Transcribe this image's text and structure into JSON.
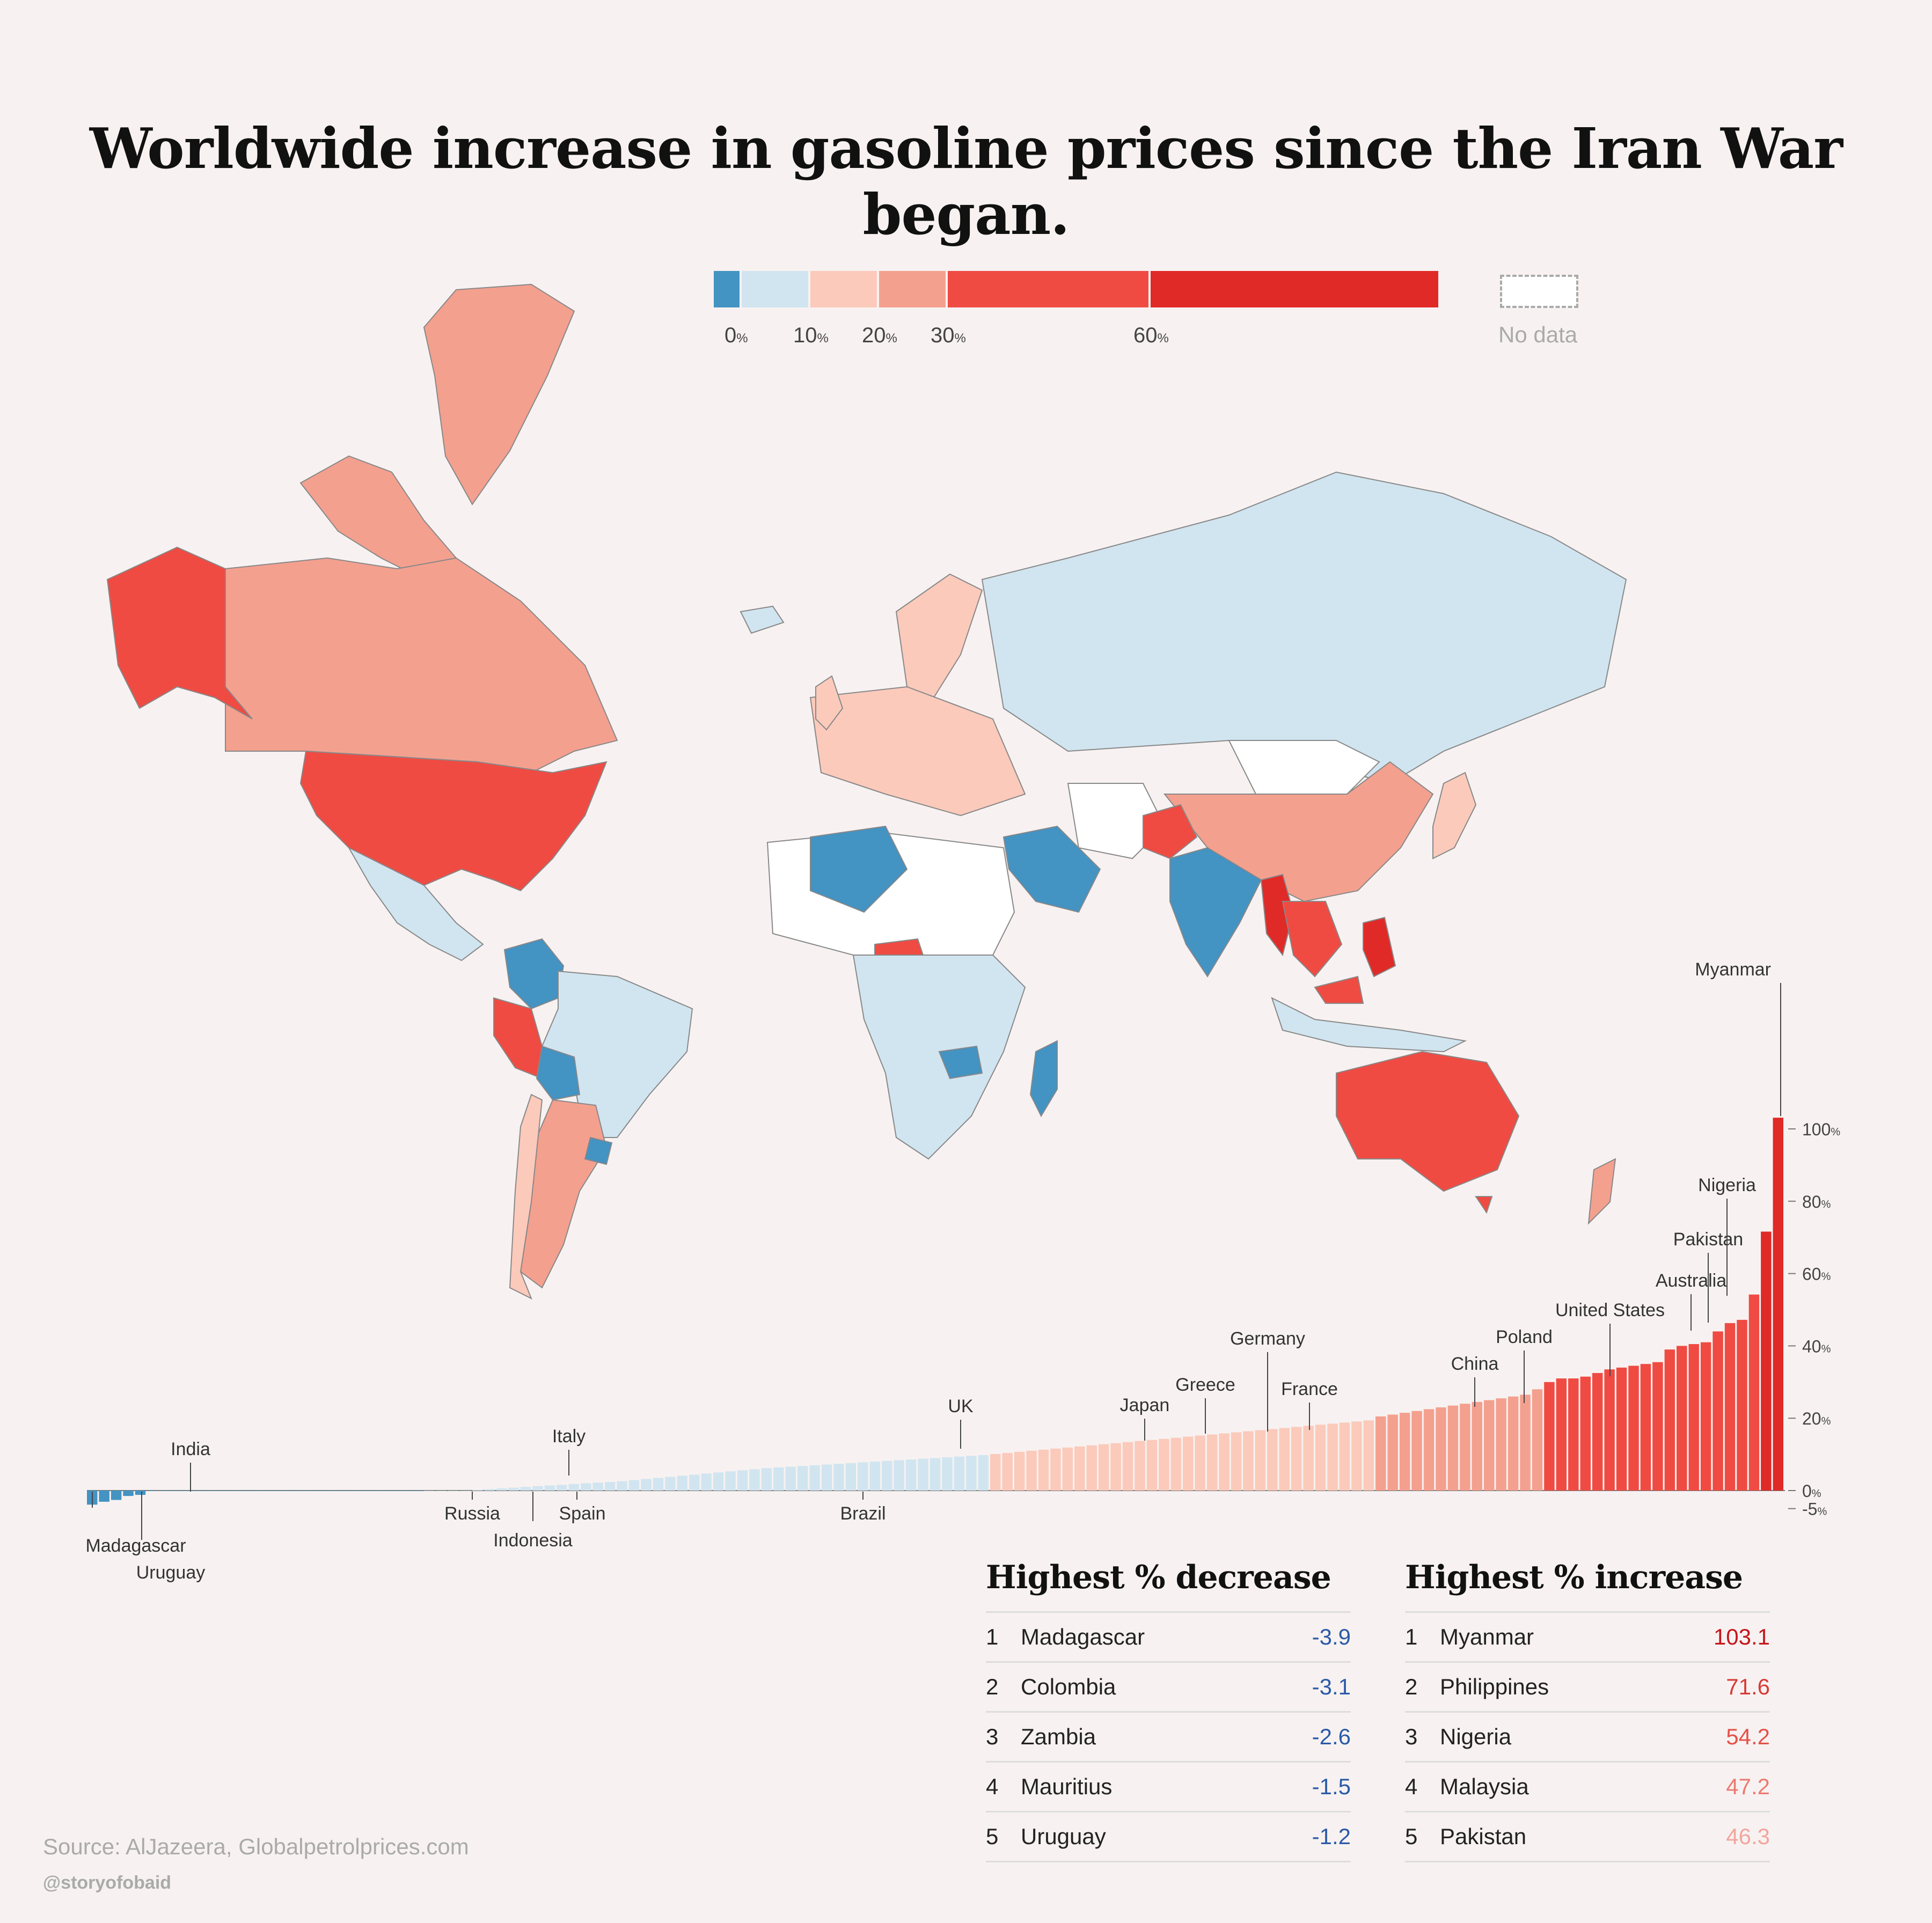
{
  "title": "Worldwide increase in gasoline prices since the Iran War began.",
  "legend": {
    "bins": [
      {
        "from": -5,
        "to": 0,
        "color": "#4393c3"
      },
      {
        "from": 0,
        "to": 10,
        "color": "#d1e5f0"
      },
      {
        "from": 10,
        "to": 20,
        "color": "#fbcabb"
      },
      {
        "from": 20,
        "to": 30,
        "color": "#f4a08f"
      },
      {
        "from": 30,
        "to": 60,
        "color": "#ef4b43"
      },
      {
        "from": 60,
        "to": 100,
        "color": "#e02a27"
      }
    ],
    "ticks": [
      "0",
      "10",
      "20",
      "30",
      "60"
    ],
    "unit": "%",
    "nodata_label": "No data"
  },
  "map": {
    "regions": [
      {
        "name": "Canada",
        "value": 25
      },
      {
        "name": "Greenland",
        "value": 25
      },
      {
        "name": "Alaska",
        "value": 31
      },
      {
        "name": "United States",
        "value": 31
      },
      {
        "name": "Mexico",
        "value": 5
      },
      {
        "name": "Colombia",
        "value": -3.1
      },
      {
        "name": "Peru",
        "value": 35
      },
      {
        "name": "Bolivia",
        "value": -1
      },
      {
        "name": "Brazil",
        "value": 9
      },
      {
        "name": "Argentina",
        "value": 22
      },
      {
        "name": "Chile",
        "value": 15
      },
      {
        "name": "Uruguay",
        "value": -1.2
      },
      {
        "name": "Russia",
        "value": 2
      },
      {
        "name": "Mongolia",
        "value": null
      },
      {
        "name": "China",
        "value": 23
      },
      {
        "name": "India",
        "value": -0.1
      },
      {
        "name": "Pakistan",
        "value": 46.3
      },
      {
        "name": "Myanmar",
        "value": 103.1
      },
      {
        "name": "Saudi Arabia",
        "value": -1
      },
      {
        "name": "Algeria",
        "value": -1
      },
      {
        "name": "Nigeria",
        "value": 54.2
      },
      {
        "name": "Madagascar",
        "value": -3.9
      },
      {
        "name": "Zambia",
        "value": -2.6
      },
      {
        "name": "Australia",
        "value": 44
      },
      {
        "name": "Philippines",
        "value": 71.6
      },
      {
        "name": "Japan",
        "value": 14
      },
      {
        "name": "Malaysia",
        "value": 47.2
      }
    ]
  },
  "chart_data": {
    "type": "bar",
    "ylabel": "",
    "ylim": [
      -5,
      105
    ],
    "yticks": [
      "100",
      "80",
      "60",
      "40",
      "20",
      "0",
      "-5"
    ],
    "unit": "%",
    "values": [
      -3.9,
      -3.1,
      -2.6,
      -1.5,
      -1.2,
      -0.1,
      -0.1,
      -0.1,
      -0.1,
      -0.1,
      -0.1,
      -0.1,
      -0.1,
      -0.1,
      -0.1,
      -0.1,
      -0.1,
      -0.1,
      -0.1,
      -0.1,
      -0.1,
      -0.1,
      -0.1,
      -0.1,
      -0.1,
      -0.1,
      -0.1,
      -0.1,
      0,
      0,
      0,
      0,
      0.2,
      0.4,
      0.6,
      0.8,
      1,
      1.2,
      1.4,
      1.6,
      1.8,
      2,
      2.2,
      2.4,
      2.6,
      2.9,
      3.2,
      3.5,
      3.8,
      4.1,
      4.4,
      4.7,
      5,
      5.3,
      5.6,
      5.9,
      6.2,
      6.4,
      6.6,
      6.8,
      7,
      7.2,
      7.4,
      7.6,
      7.8,
      8,
      8.2,
      8.4,
      8.6,
      8.8,
      9,
      9.2,
      9.4,
      9.6,
      9.8,
      10.1,
      10.4,
      10.7,
      11,
      11.3,
      11.6,
      11.9,
      12.2,
      12.5,
      12.8,
      13.1,
      13.4,
      13.7,
      14,
      14.3,
      14.6,
      14.9,
      15.2,
      15.5,
      15.8,
      16.1,
      16.4,
      16.7,
      17,
      17.3,
      17.6,
      17.9,
      18.2,
      18.5,
      18.8,
      19.1,
      19.4,
      20.5,
      21,
      21.5,
      22,
      22.5,
      23,
      23.5,
      24,
      24.5,
      25,
      25.5,
      26,
      26.5,
      28,
      30,
      31,
      31,
      31.5,
      32.5,
      33.5,
      34,
      34.5,
      35,
      35.5,
      39,
      40,
      40.5,
      41,
      44,
      46.3,
      47.2,
      54.2,
      71.6,
      103.1
    ],
    "labels_above": [
      {
        "name": "India",
        "index": 20
      },
      {
        "name": "Italy",
        "index": 9999
      },
      {
        "name": "UK",
        "index": 9999
      },
      {
        "name": "Japan",
        "index": 9999
      },
      {
        "name": "Greece",
        "index": 9999
      },
      {
        "name": "Germany",
        "index": 9999
      },
      {
        "name": "France",
        "index": 9999
      },
      {
        "name": "China",
        "index": 9999
      },
      {
        "name": "Poland",
        "index": 9999
      },
      {
        "name": "United States",
        "index": 9999
      },
      {
        "name": "Australia",
        "index": 9999
      },
      {
        "name": "Pakistan",
        "index": 9999
      },
      {
        "name": "Nigeria",
        "index": 9999
      },
      {
        "name": "Myanmar",
        "index": 9999
      }
    ],
    "labels_below": [
      {
        "name": "Madagascar"
      },
      {
        "name": "Uruguay"
      },
      {
        "name": "Russia"
      },
      {
        "name": "Indonesia"
      },
      {
        "name": "Spain"
      },
      {
        "name": "Brazil"
      }
    ]
  },
  "tables": {
    "decrease": {
      "title": "Highest % decrease",
      "rows": [
        {
          "rank": "1",
          "name": "Madagascar",
          "value": "-3.9"
        },
        {
          "rank": "2",
          "name": "Colombia",
          "value": "-3.1"
        },
        {
          "rank": "3",
          "name": "Zambia",
          "value": "-2.6"
        },
        {
          "rank": "4",
          "name": "Mauritius",
          "value": "-1.5"
        },
        {
          "rank": "5",
          "name": "Uruguay",
          "value": "-1.2"
        }
      ],
      "value_color": "#2b5aa7"
    },
    "increase": {
      "title": "Highest % increase",
      "rows": [
        {
          "rank": "1",
          "name": "Myanmar",
          "value": "103.1",
          "color": "#c4161c"
        },
        {
          "rank": "2",
          "name": "Philippines",
          "value": "71.6",
          "color": "#d83a36"
        },
        {
          "rank": "3",
          "name": "Nigeria",
          "value": "54.2",
          "color": "#e4524a"
        },
        {
          "rank": "4",
          "name": "Malaysia",
          "value": "47.2",
          "color": "#eb7a72"
        },
        {
          "rank": "5",
          "name": "Pakistan",
          "value": "46.3",
          "color": "#f2a59e"
        }
      ]
    }
  },
  "source": "Source: AlJazeera, Globalpetrolprices.com",
  "handle": "@storyofobaid"
}
